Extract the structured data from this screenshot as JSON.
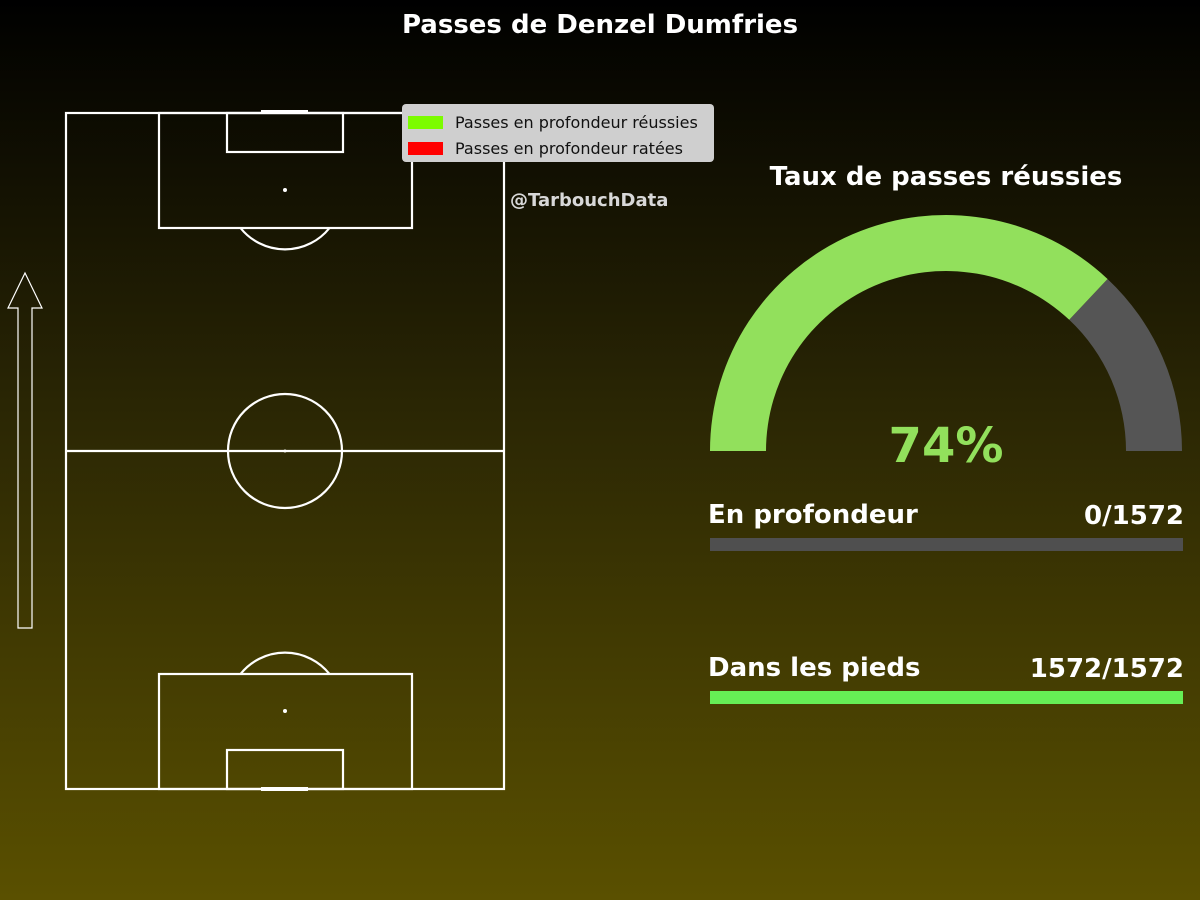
{
  "title": "Passes de Denzel Dumfries",
  "watermark": "@TarbouchData",
  "legend": [
    {
      "label": "Passes en profondeur réussies",
      "color": "#7cfc00"
    },
    {
      "label": "Passes en profondeur ratées",
      "color": "#ff0000"
    }
  ],
  "colors": {
    "gauge_fill": "#92e05c",
    "gauge_rest": "#555555",
    "bar_track": "#4f4f4f",
    "bar_fill": "#66ee55",
    "pitch_lines": "#ffffff"
  },
  "chart_data": [
    {
      "type": "gauge",
      "title": "Taux de passes réussies",
      "value": 74,
      "max": 100,
      "display": "74%"
    },
    {
      "type": "bar",
      "categories": [
        "En profondeur",
        "Dans les pieds"
      ],
      "series": [
        {
          "values": [
            0,
            1572
          ]
        }
      ],
      "totals": [
        1572,
        1572
      ],
      "labels": [
        "0/1572",
        "1572/1572"
      ]
    }
  ]
}
